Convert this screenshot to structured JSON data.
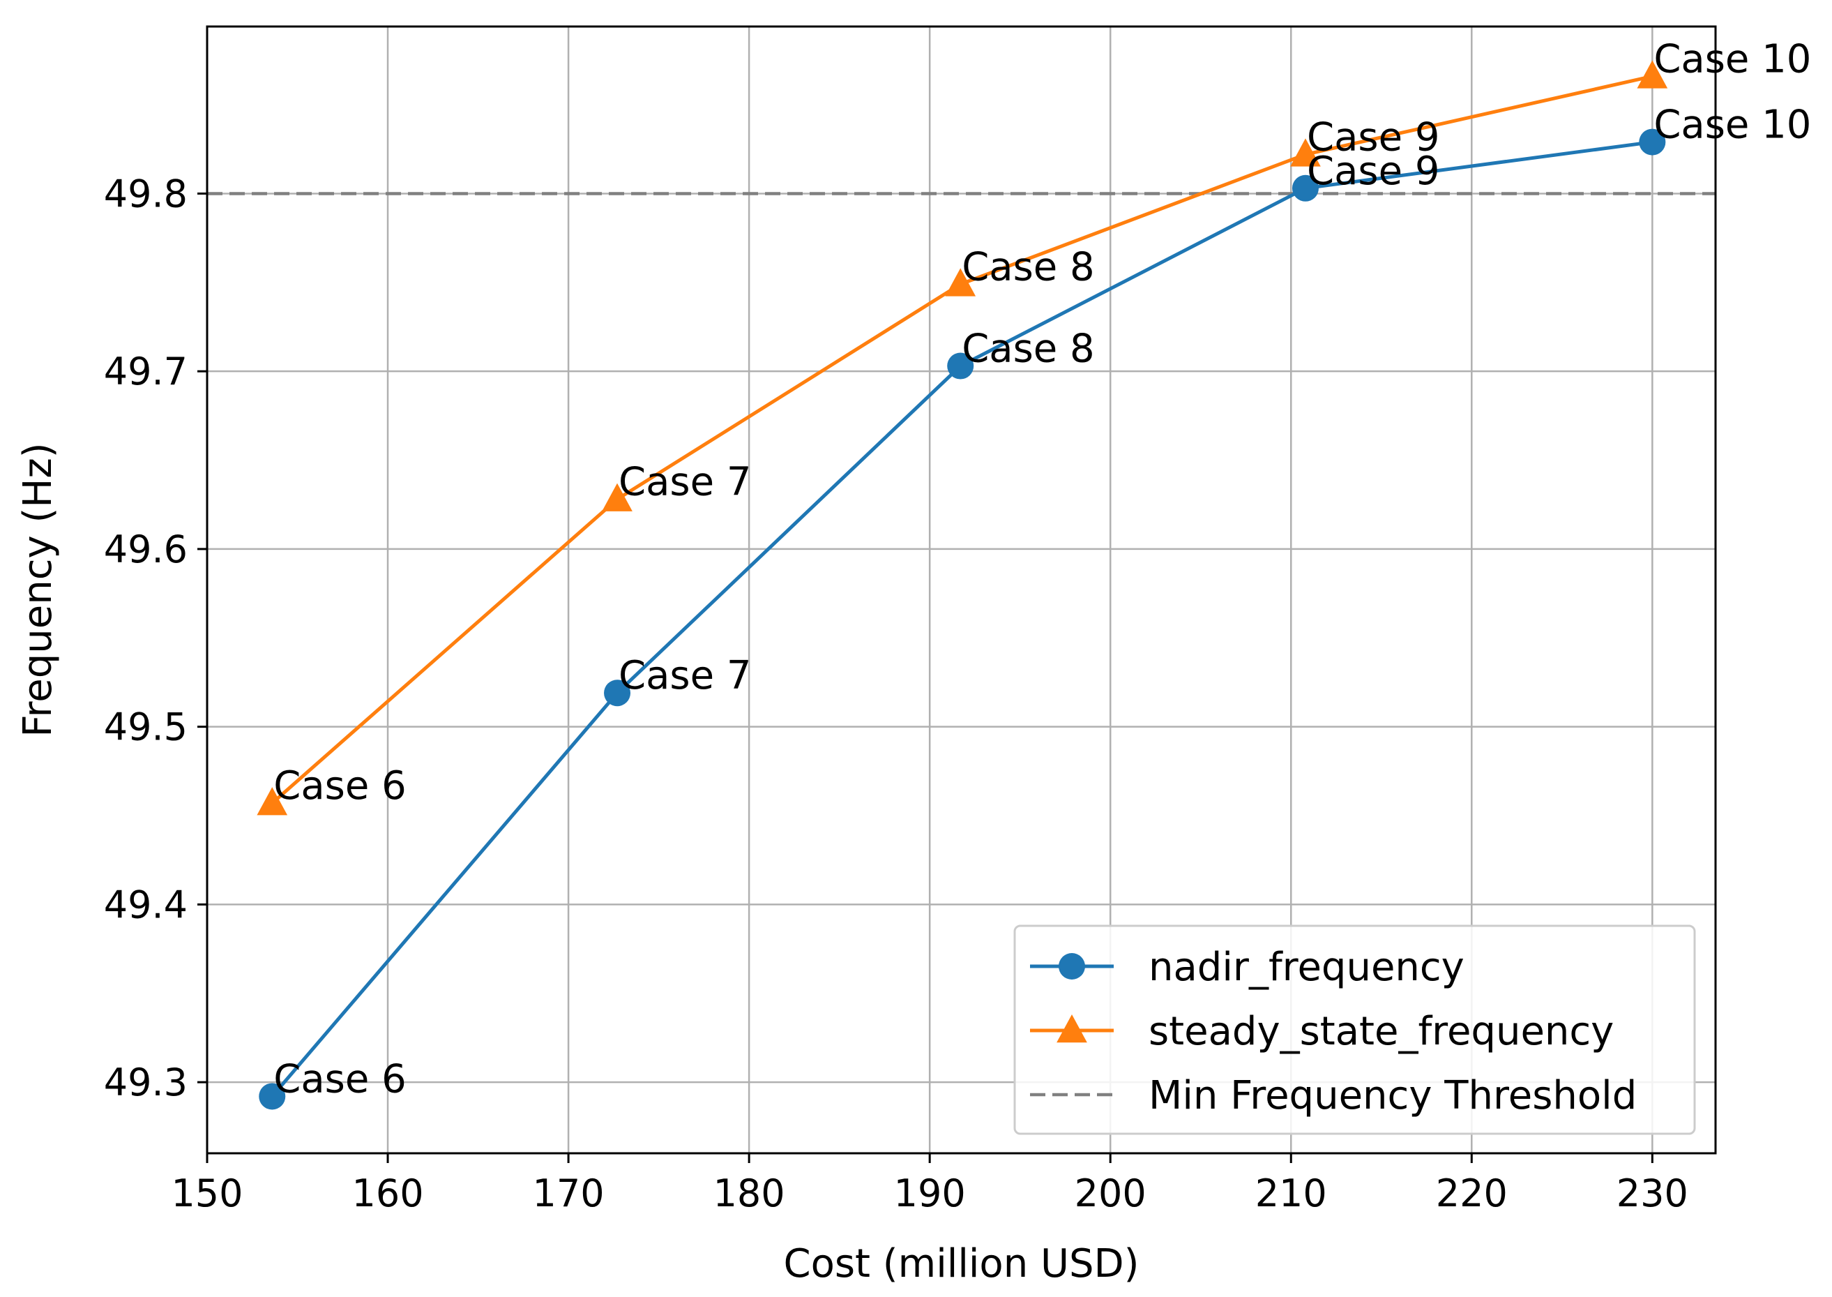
{
  "chart_data": {
    "type": "line",
    "title": "",
    "xlabel": "Cost (million USD)",
    "ylabel": "Frequency (Hz)",
    "xlim": [
      150,
      233.5
    ],
    "ylim": [
      49.26,
      49.894
    ],
    "xticks": [
      150,
      160,
      170,
      180,
      190,
      200,
      210,
      220,
      230
    ],
    "yticks": [
      49.3,
      49.4,
      49.5,
      49.6,
      49.7,
      49.8
    ],
    "grid": true,
    "legend_position": "bottom-right",
    "series": [
      {
        "name": "nadir_frequency",
        "color": "#1f77b4",
        "marker": "circle",
        "x": [
          153.6,
          172.7,
          191.7,
          210.8,
          230.0
        ],
        "y": [
          49.292,
          49.519,
          49.703,
          49.803,
          49.829
        ],
        "labels": [
          "Case 6",
          "Case 7",
          "Case 8",
          "Case 9",
          "Case 10"
        ]
      },
      {
        "name": "steady_state_frequency",
        "color": "#ff7f0e",
        "marker": "triangle",
        "x": [
          153.6,
          172.7,
          191.7,
          210.8,
          230.0
        ],
        "y": [
          49.457,
          49.628,
          49.749,
          49.822,
          49.866
        ],
        "labels": [
          "Case 6",
          "Case 7",
          "Case 8",
          "Case 9",
          "Case 10"
        ]
      }
    ],
    "reference_lines": [
      {
        "name": "Min Frequency Threshold",
        "y": 49.8,
        "color": "#808080",
        "style": "dashed"
      }
    ]
  }
}
